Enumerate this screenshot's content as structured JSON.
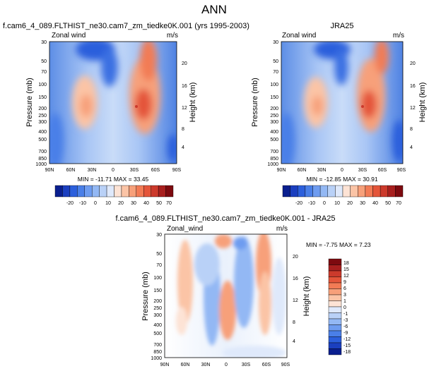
{
  "figure_title": "ANN",
  "colors": {
    "blue_scale": [
      "#0a1f8f",
      "#1b3fbf",
      "#2c5fdc",
      "#4a7fe8",
      "#6e9cf0",
      "#93b8f4",
      "#b9d1f7",
      "#dfe9fb"
    ],
    "red_scale": [
      "#fde3d5",
      "#fbc4a6",
      "#f7a07a",
      "#f27b55",
      "#e4553a",
      "#cc3a2c",
      "#a81f1e",
      "#7d0a0f"
    ],
    "neutral": "#ffffff"
  },
  "chart_data": [
    {
      "type": "heatmap",
      "title": "f.cam6_4_089.FLTHIST_ne30.cam7_zm_tiedke0K.001 (yrs 1995-2003)",
      "field_label": "Zonal wind",
      "units": "m/s",
      "ylabel": "Pressure (mb)",
      "ylabel_right": "Height (km)",
      "x_ticks": [
        "90N",
        "60N",
        "30N",
        "0",
        "30S",
        "60S",
        "90S"
      ],
      "y_ticks": [
        "30",
        "50",
        "70",
        "100",
        "150",
        "200",
        "250",
        "300",
        "400",
        "500",
        "700",
        "850",
        "1000"
      ],
      "y_ticks_right": [
        "20",
        "16",
        "12",
        "8",
        "4"
      ],
      "min_max_text": "MIN = -11.71   MAX = 33.45",
      "min": -11.71,
      "max": 33.45,
      "colorbar_labels": [
        "-20",
        "-10",
        "0",
        "10",
        "20",
        "30",
        "40",
        "50",
        "70"
      ]
    },
    {
      "type": "heatmap",
      "title": "JRA25",
      "field_label": "Zonal wind",
      "units": "m/s",
      "ylabel": "Pressure (mb)",
      "ylabel_right": "Height (km)",
      "x_ticks": [
        "90N",
        "60N",
        "30N",
        "0",
        "30S",
        "60S",
        "90S"
      ],
      "y_ticks": [
        "30",
        "50",
        "70",
        "100",
        "150",
        "200",
        "250",
        "300",
        "400",
        "500",
        "700",
        "850",
        "1000"
      ],
      "y_ticks_right": [
        "20",
        "16",
        "12",
        "8",
        "4"
      ],
      "min_max_text": "MIN = -12.85   MAX = 30.91",
      "min": -12.85,
      "max": 30.91,
      "colorbar_labels": [
        "-20",
        "-10",
        "0",
        "10",
        "20",
        "30",
        "40",
        "50",
        "70"
      ]
    },
    {
      "type": "heatmap",
      "title": "f.cam6_4_089.FLTHIST_ne30.cam7_zm_tiedke0K.001 - JRA25",
      "field_label": "Zonal_wind",
      "units": "m/s",
      "ylabel": "Pressure (mb)",
      "ylabel_right": "Height (km)",
      "x_ticks": [
        "90N",
        "60N",
        "30N",
        "0",
        "30S",
        "60S",
        "90S"
      ],
      "y_ticks": [
        "30",
        "50",
        "70",
        "100",
        "150",
        "200",
        "250",
        "300",
        "400",
        "500",
        "700",
        "850",
        "1000"
      ],
      "y_ticks_right": [
        "20",
        "16",
        "12",
        "8",
        "4"
      ],
      "min_max_text": "MIN = -7.75  MAX =  7.23",
      "min": -7.75,
      "max": 7.23,
      "colorbar_labels": [
        "18",
        "15",
        "12",
        "9",
        "6",
        "3",
        "1",
        "0",
        "-1",
        "-3",
        "-6",
        "-9",
        "-12",
        "-15",
        "-18"
      ]
    }
  ]
}
